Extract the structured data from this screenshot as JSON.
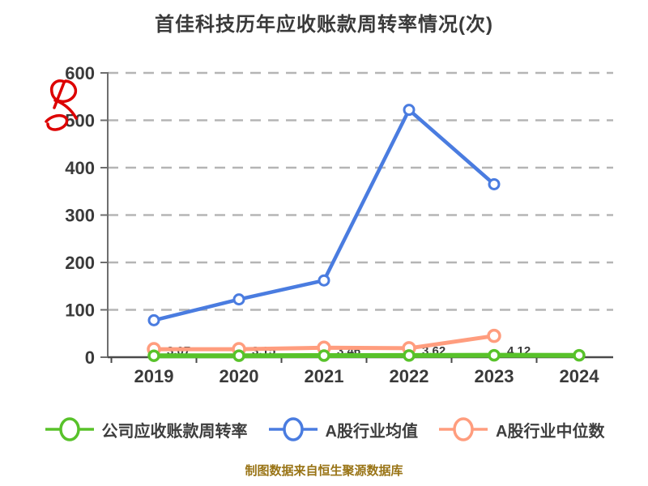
{
  "title": "首佳科技历年应收账款周转率情况(次)",
  "footer": "制图数据来自恒生聚源数据库",
  "colors": {
    "title_text": "#3a3a3a",
    "axis_line": "#4a4a4a",
    "left_axis_line": "#6e6e6e",
    "tick_text": "#3a3a3a",
    "grid_line": "#b5b5b5",
    "green_series": "#58c22a",
    "blue_series": "#4a7ce0",
    "orange_series": "#ff9d7e",
    "marker_fill": "#ffffff",
    "point_label_text": "#3a3a3a",
    "annotation_red": "#dd0000",
    "footer_gold": "#997416"
  },
  "legend": {
    "items": [
      {
        "label": "公司应收账款周转率",
        "color": "#58c22a"
      },
      {
        "label": "A股行业均值",
        "color": "#4a7ce0"
      },
      {
        "label": "A股行业中位数",
        "color": "#ff9d7e"
      }
    ]
  },
  "chart_data": {
    "type": "line",
    "title": "首佳科技历年应收账款周转率情况(次)",
    "categories": [
      "2019",
      "2020",
      "2021",
      "2022",
      "2023",
      "2024"
    ],
    "series": [
      {
        "name": "公司应收账款周转率",
        "color": "#58c22a",
        "values": [
          3.07,
          3.15,
          3.46,
          3.62,
          4.12,
          4.0
        ],
        "point_labels": [
          "3.07",
          "3.15",
          "3.46",
          "3.62",
          "4.12",
          ""
        ],
        "marker": "circle-white-fill"
      },
      {
        "name": "A股行业均值",
        "color": "#4a7ce0",
        "values": [
          78,
          122,
          162,
          522,
          365,
          null
        ],
        "point_labels": [
          "",
          "",
          "",
          "",
          "",
          ""
        ],
        "marker": "circle-white-fill"
      },
      {
        "name": "A股行业中位数",
        "color": "#ff9d7e",
        "values": [
          17,
          17,
          20,
          19,
          45,
          null
        ],
        "point_labels": [
          "",
          "",
          "",
          "",
          "",
          ""
        ],
        "marker": "circle-white-fill"
      }
    ],
    "xlabel": "",
    "ylabel": "",
    "ylim": [
      0,
      600
    ],
    "yticks": [
      0,
      100,
      200,
      300,
      400,
      500,
      600
    ],
    "grid": "horizontal-dashed",
    "legend_position": "bottom",
    "annotations": [
      {
        "type": "handwritten-scribble",
        "text_like": "R",
        "color": "#dd0000",
        "position": "left of y-axis between 500 and 600"
      }
    ]
  }
}
